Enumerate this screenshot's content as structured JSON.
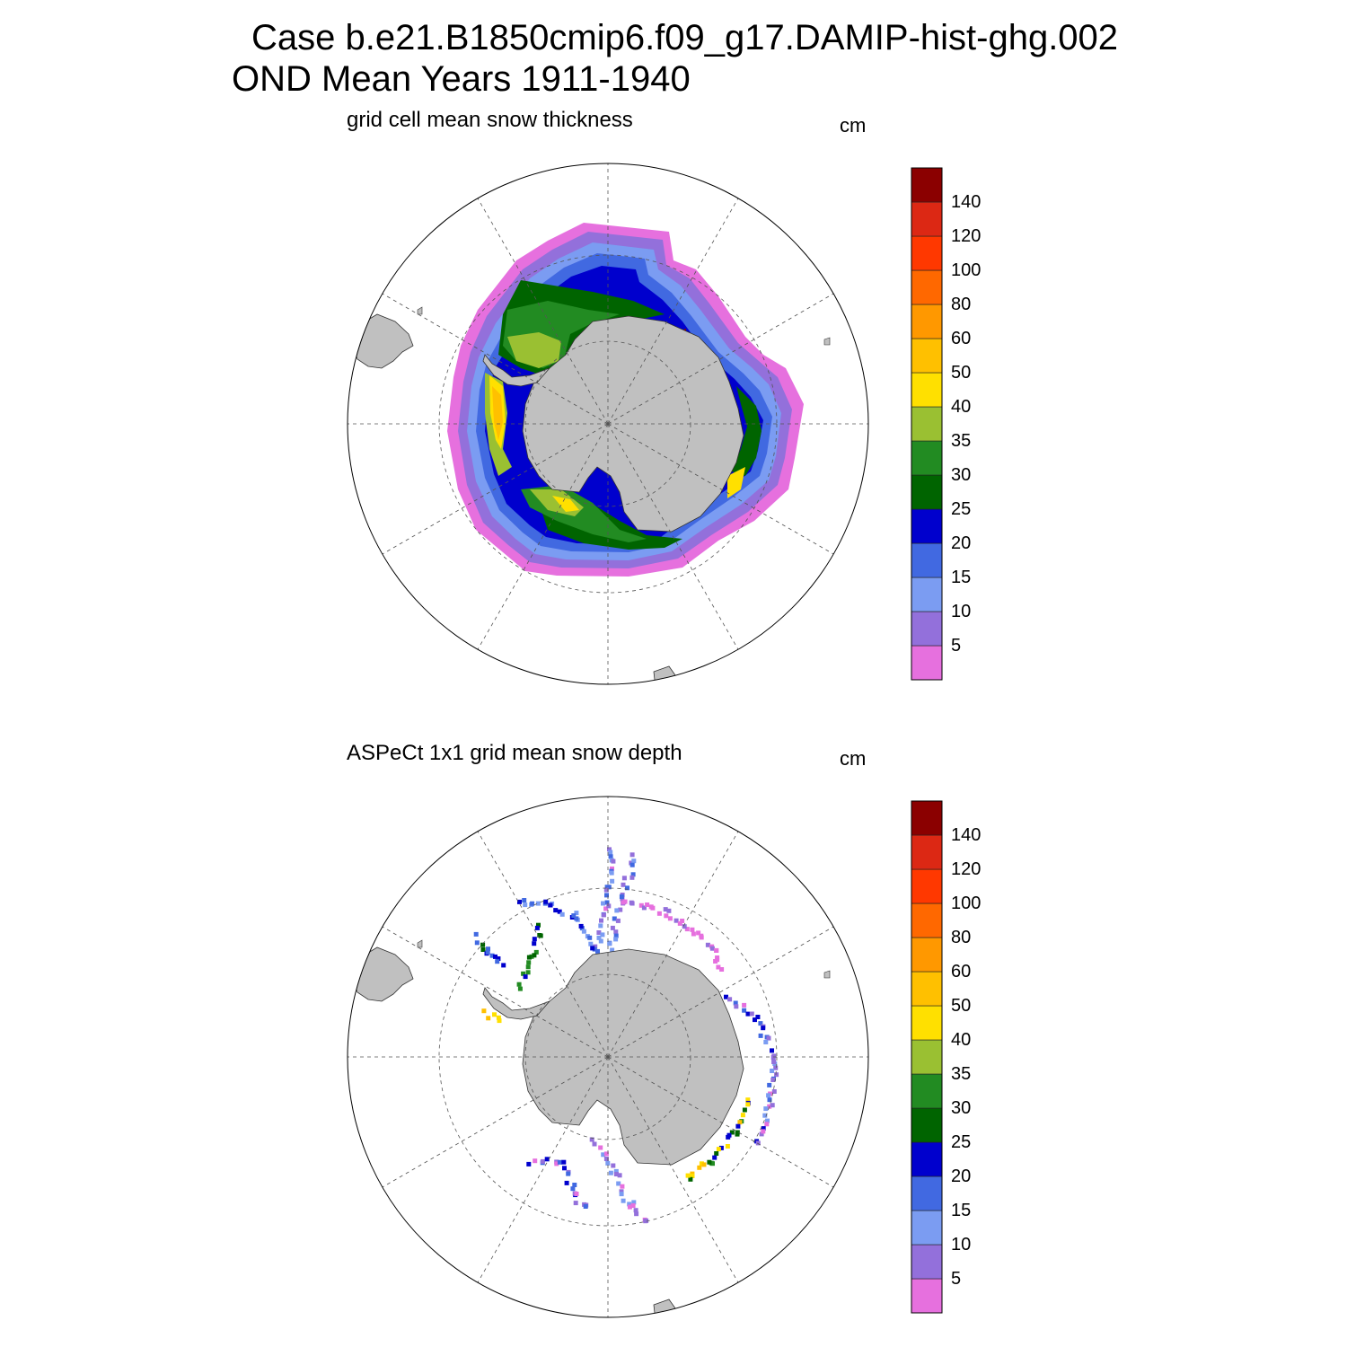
{
  "title": {
    "line1": "Case b.e21.B1850cmip6.f09_g17.DAMIP-hist-ghg.002",
    "line2": "OND Mean   Years 1911-1940"
  },
  "panels": [
    {
      "id": "model",
      "title": "grid cell mean snow thickness",
      "units": "cm"
    },
    {
      "id": "obs",
      "title": "ASPeCt 1x1 grid mean snow depth",
      "units": "cm"
    }
  ],
  "colorbar": {
    "labels": [
      "5",
      "10",
      "15",
      "20",
      "25",
      "30",
      "35",
      "40",
      "50",
      "60",
      "80",
      "100",
      "120",
      "140"
    ],
    "colors": [
      "#e670de",
      "#9370db",
      "#7b9cf2",
      "#4169e1",
      "#0000cd",
      "#006400",
      "#228b22",
      "#9ac032",
      "#ffe000",
      "#ffc000",
      "#ff9800",
      "#ff6800",
      "#ff3800",
      "#dc2814",
      "#8b0000"
    ]
  },
  "map": {
    "projection": "south-polar-stereographic",
    "land_color": "#c0c0c0",
    "ocean_color": "#ffffff",
    "grid_style": "dashed"
  }
}
